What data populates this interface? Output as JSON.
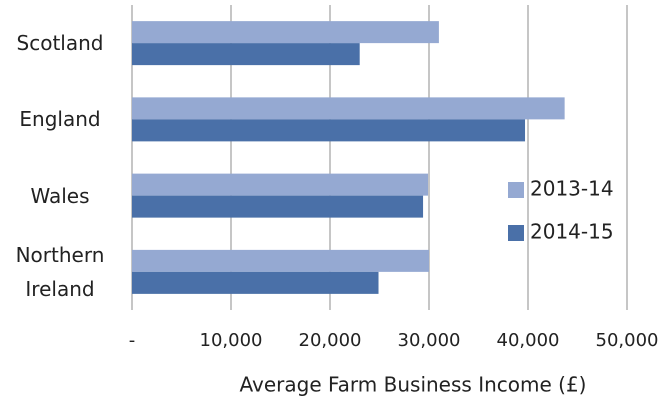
{
  "chart_data": {
    "type": "bar",
    "orientation": "horizontal",
    "x_label": "Average Farm Business Income (£)",
    "categories": [
      "Scotland",
      "England",
      "Wales",
      "Northern Ireland"
    ],
    "series": [
      {
        "name": "2013-14",
        "color": "#95a9d2",
        "values": [
          31000,
          43700,
          29900,
          30000
        ]
      },
      {
        "name": "2014-15",
        "color": "#4a70a8",
        "values": [
          23000,
          39700,
          29400,
          24900
        ]
      }
    ],
    "xlim": [
      0,
      50000
    ],
    "xticks": [
      {
        "value": 0,
        "label": "-"
      },
      {
        "value": 10000,
        "label": "10,000"
      },
      {
        "value": 20000,
        "label": "20,000"
      },
      {
        "value": 30000,
        "label": "30,000"
      },
      {
        "value": 40000,
        "label": "40,000"
      },
      {
        "value": 50000,
        "label": "50,000"
      }
    ],
    "grid": true,
    "legend": "right"
  }
}
